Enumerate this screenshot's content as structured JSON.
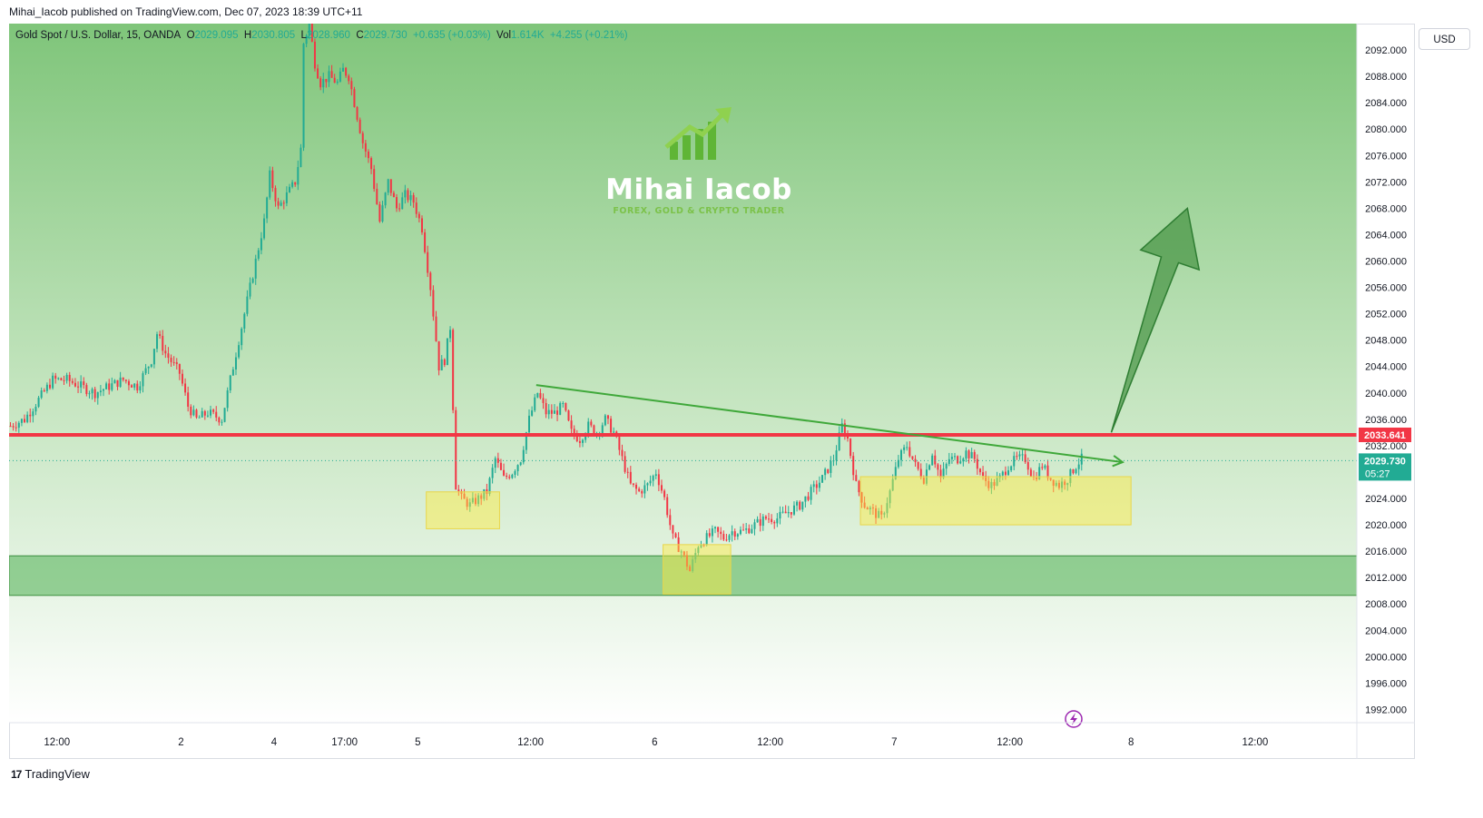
{
  "published": "Mihai_Iacob published on TradingView.com, Dec 07, 2023 18:39 UTC+11",
  "header": {
    "symbol": "Gold Spot / U.S. Dollar, 15, OANDA",
    "o_label": "O",
    "o_value": "2029.095",
    "h_label": "H",
    "h_value": "2030.805",
    "l_label": "L",
    "l_value": "2028.960",
    "c_label": "C",
    "c_value": "2029.730",
    "change": "+0.635 (+0.03%)",
    "vol_label": "Vol",
    "vol_value": "1.614K",
    "vol_change": "+4.255 (+0.21%)"
  },
  "currency_button": "USD",
  "footer": {
    "logo_mark": "17",
    "logo_text": "TradingView"
  },
  "watermark": {
    "name": "Mihai Iacob",
    "tagline": "FOREX, GOLD & CRYPTO TRADER"
  },
  "colors": {
    "bullish": "#22ab94",
    "bearish": "#f23645",
    "resistance": "#f23645",
    "trendline": "#3fa83a",
    "zone_yellow": "#ffeb3b",
    "zone_green": "#4caf50",
    "price_badge": "#22ab94"
  },
  "chart_data": {
    "type": "candlestick",
    "symbol": "Gold Spot / U.S. Dollar",
    "interval": "15",
    "ylim": [
      1990,
      2096
    ],
    "y_ticks": [
      "2092.000",
      "2088.000",
      "2084.000",
      "2080.000",
      "2076.000",
      "2072.000",
      "2068.000",
      "2064.000",
      "2060.000",
      "2056.000",
      "2052.000",
      "2048.000",
      "2044.000",
      "2040.000",
      "2036.000",
      "2032.000",
      "2028.000",
      "2024.000",
      "2020.000",
      "2016.000",
      "2012.000",
      "2008.000",
      "2004.000",
      "2000.000",
      "1996.000",
      "1992.000"
    ],
    "x_ticks": [
      "12:00",
      "2",
      "4",
      "17:00",
      "5",
      "12:00",
      "6",
      "12:00",
      "7",
      "12:00",
      "8",
      "12:00"
    ],
    "price_path": [
      [
        0,
        2035
      ],
      [
        5,
        2036
      ],
      [
        10,
        2039
      ],
      [
        15,
        2042
      ],
      [
        20,
        2042
      ],
      [
        25,
        2041
      ],
      [
        30,
        2040
      ],
      [
        35,
        2041
      ],
      [
        40,
        2042
      ],
      [
        45,
        2041
      ],
      [
        50,
        2045
      ],
      [
        52,
        2049
      ],
      [
        55,
        2046
      ],
      [
        60,
        2043
      ],
      [
        63,
        2038
      ],
      [
        66,
        2036
      ],
      [
        70,
        2037
      ],
      [
        75,
        2036
      ],
      [
        78,
        2042
      ],
      [
        81,
        2048
      ],
      [
        84,
        2054
      ],
      [
        87,
        2060
      ],
      [
        90,
        2066
      ],
      [
        92,
        2073
      ],
      [
        95,
        2068
      ],
      [
        98,
        2070
      ],
      [
        101,
        2072
      ],
      [
        103,
        2077
      ],
      [
        104,
        2093
      ],
      [
        106,
        2096
      ],
      [
        108,
        2090
      ],
      [
        110,
        2087
      ],
      [
        113,
        2088
      ],
      [
        116,
        2087
      ],
      [
        118,
        2089
      ],
      [
        120,
        2088
      ],
      [
        122,
        2084
      ],
      [
        125,
        2078
      ],
      [
        128,
        2074
      ],
      [
        131,
        2066
      ],
      [
        134,
        2072
      ],
      [
        137,
        2068
      ],
      [
        140,
        2070
      ],
      [
        143,
        2069
      ],
      [
        146,
        2065
      ],
      [
        149,
        2056
      ],
      [
        152,
        2044
      ],
      [
        154,
        2045
      ],
      [
        156,
        2050
      ],
      [
        158,
        2026
      ],
      [
        160,
        2024
      ],
      [
        163,
        2023
      ],
      [
        166,
        2024
      ],
      [
        169,
        2025
      ],
      [
        172,
        2030
      ],
      [
        175,
        2027
      ],
      [
        178,
        2028
      ],
      [
        181,
        2030
      ],
      [
        184,
        2036
      ],
      [
        187,
        2040
      ],
      [
        190,
        2037
      ],
      [
        193,
        2037
      ],
      [
        196,
        2038
      ],
      [
        199,
        2034
      ],
      [
        202,
        2033
      ],
      [
        205,
        2035
      ],
      [
        208,
        2034
      ],
      [
        211,
        2036
      ],
      [
        214,
        2034
      ],
      [
        217,
        2030
      ],
      [
        220,
        2026
      ],
      [
        223,
        2025
      ],
      [
        226,
        2026
      ],
      [
        229,
        2028
      ],
      [
        232,
        2024
      ],
      [
        235,
        2018
      ],
      [
        238,
        2016
      ],
      [
        241,
        2013
      ],
      [
        244,
        2017
      ],
      [
        247,
        2018
      ],
      [
        250,
        2019
      ],
      [
        253,
        2018
      ],
      [
        256,
        2019
      ],
      [
        260,
        2019
      ],
      [
        264,
        2020
      ],
      [
        268,
        2021
      ],
      [
        272,
        2021
      ],
      [
        276,
        2022
      ],
      [
        280,
        2023
      ],
      [
        284,
        2025
      ],
      [
        288,
        2027
      ],
      [
        292,
        2030
      ],
      [
        295,
        2035
      ],
      [
        297,
        2033
      ],
      [
        300,
        2026
      ],
      [
        303,
        2023
      ],
      [
        306,
        2022
      ],
      [
        309,
        2021
      ],
      [
        312,
        2025
      ],
      [
        315,
        2030
      ],
      [
        318,
        2032
      ],
      [
        321,
        2029
      ],
      [
        324,
        2027
      ],
      [
        327,
        2031
      ],
      [
        330,
        2027
      ],
      [
        333,
        2030
      ],
      [
        336,
        2030
      ],
      [
        339,
        2031
      ],
      [
        342,
        2030
      ],
      [
        345,
        2027
      ],
      [
        348,
        2026
      ],
      [
        351,
        2027
      ],
      [
        354,
        2029
      ],
      [
        357,
        2030
      ],
      [
        360,
        2030
      ],
      [
        363,
        2027
      ],
      [
        366,
        2029
      ],
      [
        369,
        2027
      ],
      [
        372,
        2026
      ],
      [
        375,
        2027
      ],
      [
        378,
        2029
      ],
      [
        380,
        2030
      ]
    ],
    "annotations": {
      "resistance_level": 2033.641,
      "current_price": "2029.730",
      "countdown": "05:27",
      "resistance_label": "2033.641",
      "support_zone": [
        2009.3,
        2015.3
      ],
      "trendline": {
        "start": [
          187,
          2041.2
        ],
        "end": [
          395,
          2029.5
        ]
      },
      "yellow_boxes": [
        {
          "x": [
            148,
            174
          ],
          "y": [
            2019.4,
            2025.0
          ]
        },
        {
          "x": [
            232,
            256
          ],
          "y": [
            2009.5,
            2017.0
          ]
        },
        {
          "x": [
            302,
            398
          ],
          "y": [
            2020.0,
            2027.3
          ]
        }
      ],
      "bullish_arrow": {
        "tail": [
          391,
          2034
        ],
        "head": [
          418,
          2068
        ]
      }
    }
  }
}
